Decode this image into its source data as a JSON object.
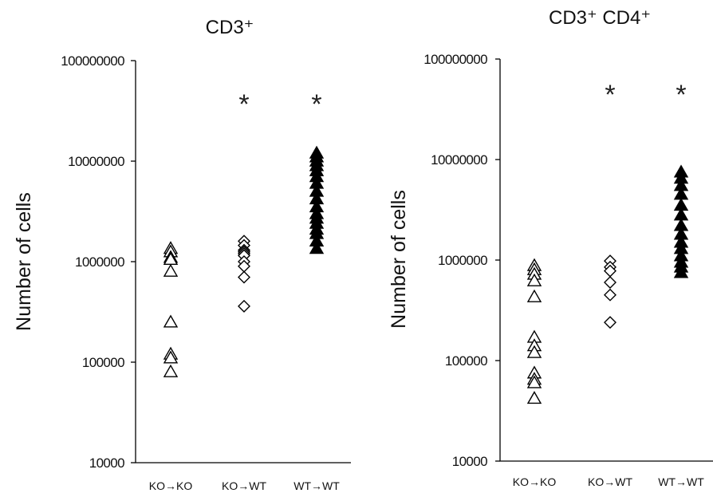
{
  "chart_data": [
    {
      "type": "scatter",
      "title": "CD3⁺",
      "ylabel": "Number of cells",
      "yscale": "log",
      "ylim": [
        10000,
        100000000
      ],
      "yticks": [
        "10000",
        "100000",
        "1000000",
        "10000000",
        "100000000"
      ],
      "categories": [
        "KO→KO",
        "KO→WT",
        "WT→WT"
      ],
      "annotations": [
        "",
        "*",
        "*"
      ],
      "series": [
        {
          "marker": "triangle-open",
          "color": "#000000",
          "values": [
            1350000,
            1250000,
            1100000,
            1050000,
            800000,
            250000,
            120000,
            110000,
            80000
          ]
        },
        {
          "marker": "diamond-open",
          "color": "#000000",
          "values": [
            1600000,
            1450000,
            1300000,
            1250000,
            1200000,
            1150000,
            1000000,
            900000,
            700000,
            360000
          ]
        },
        {
          "marker": "triangle-filled",
          "color": "#000000",
          "values": [
            12000000,
            11000000,
            10000000,
            9000000,
            8000000,
            7000000,
            6000000,
            5000000,
            4200000,
            3500000,
            3000000,
            2700000,
            2400000,
            2100000,
            1900000,
            1600000,
            1350000
          ]
        }
      ]
    },
    {
      "type": "scatter",
      "title": "CD3⁺ CD4⁺",
      "ylabel": "Number of cells",
      "yscale": "log",
      "ylim": [
        10000,
        100000000
      ],
      "yticks": [
        "10000",
        "100000",
        "1000000",
        "10000000",
        "100000000"
      ],
      "categories": [
        "KO→KO",
        "KO→WT",
        "WT→WT"
      ],
      "annotations": [
        "",
        "*",
        "*"
      ],
      "series": [
        {
          "marker": "triangle-open",
          "color": "#000000",
          "values": [
            880000,
            800000,
            720000,
            620000,
            430000,
            170000,
            140000,
            120000,
            75000,
            65000,
            60000,
            42000
          ]
        },
        {
          "marker": "diamond-open",
          "color": "#000000",
          "values": [
            980000,
            850000,
            780000,
            600000,
            450000,
            240000
          ]
        },
        {
          "marker": "triangle-filled",
          "color": "#000000",
          "values": [
            7500000,
            6500000,
            5500000,
            4500000,
            3500000,
            2800000,
            2200000,
            1800000,
            1500000,
            1300000,
            1100000,
            950000,
            850000,
            750000
          ]
        }
      ]
    }
  ]
}
